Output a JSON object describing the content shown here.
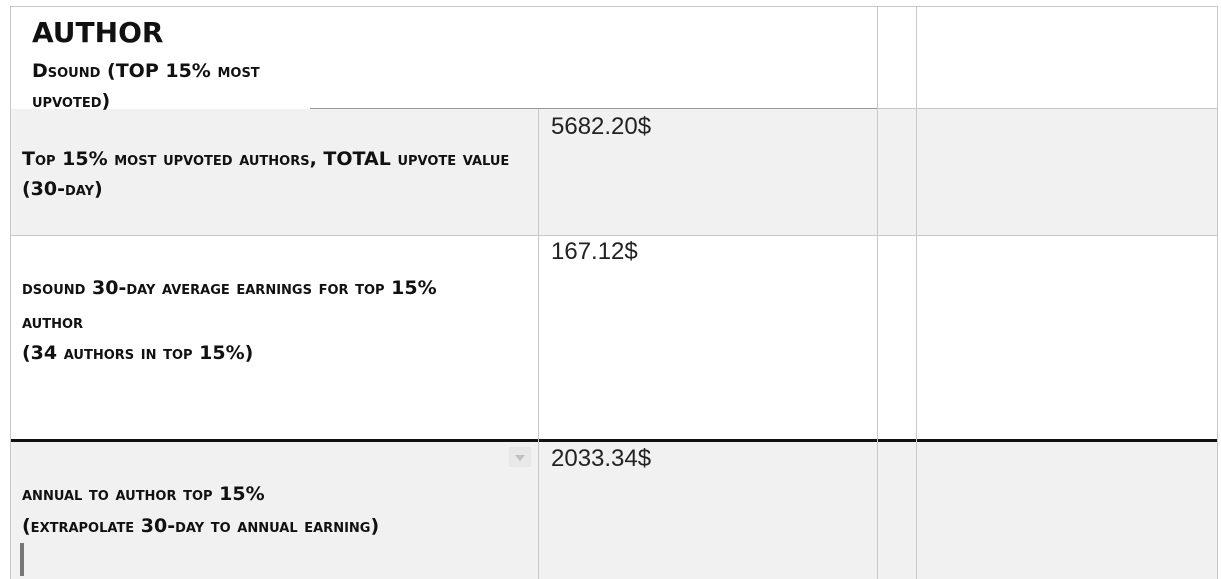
{
  "header": {
    "title": "AUTHOR",
    "subtitle": "Dsound (TOP 15% most upvoted)"
  },
  "rows": [
    {
      "label_line1": "Top 15% most upvoted authors, TOTAL upvote value",
      "label_line2": "(30-day)",
      "value": "5682.20$"
    },
    {
      "label_line1": "dsound 30-day average earnings for top 15%",
      "label_line2": "author",
      "label_line3": "(34 authors in top 15%)",
      "value": "167.12$"
    },
    {
      "label_line1": "annual to author top 15%",
      "label_line2": "(extrapolate 30-day to annual earning)",
      "value": "2033.34$"
    }
  ],
  "colors": {
    "row_fill": "#f1f1f1",
    "grid": "#c8c8c8",
    "thick_border": "#111111"
  }
}
